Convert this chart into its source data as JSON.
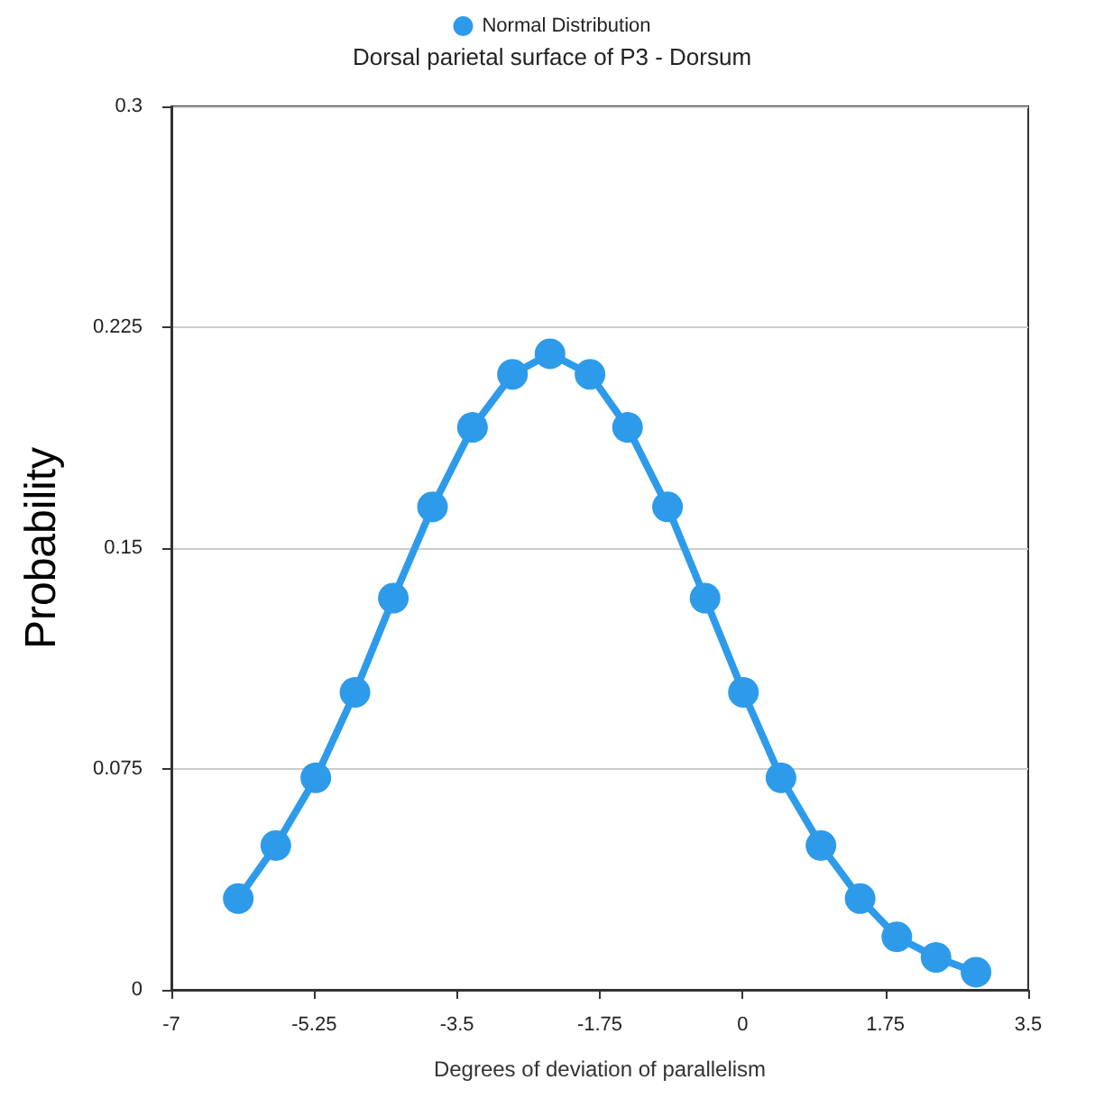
{
  "chart_data": {
    "type": "line",
    "title": "Dorsal parietal surface of P3 - Dorsum",
    "xlabel": "Degrees of deviation of parallelism",
    "ylabel": "Probability",
    "x": [
      -6.18,
      -5.72,
      -5.23,
      -4.75,
      -4.28,
      -3.8,
      -3.31,
      -2.82,
      -2.36,
      -1.87,
      -1.41,
      -0.92,
      -0.46,
      0.01,
      0.47,
      0.96,
      1.44,
      1.89,
      2.37,
      2.86
    ],
    "series": [
      {
        "name": "Normal Distribution",
        "color": "#2e9bea",
        "values": [
          0.031,
          0.049,
          0.072,
          0.101,
          0.133,
          0.164,
          0.191,
          0.209,
          0.216,
          0.209,
          0.191,
          0.164,
          0.133,
          0.101,
          0.072,
          0.049,
          0.031,
          0.018,
          0.011,
          0.006
        ]
      }
    ],
    "xlim": [
      -7,
      3.5
    ],
    "xticks": [
      -7,
      -5.25,
      -3.5,
      -1.75,
      0,
      1.75,
      3.5
    ],
    "ylim": [
      0,
      0.3
    ],
    "yticks": [
      0,
      0.075,
      0.15,
      0.225,
      0.3
    ],
    "grid": "y",
    "legend": "top",
    "marker": "circle",
    "line_style": "solid"
  }
}
